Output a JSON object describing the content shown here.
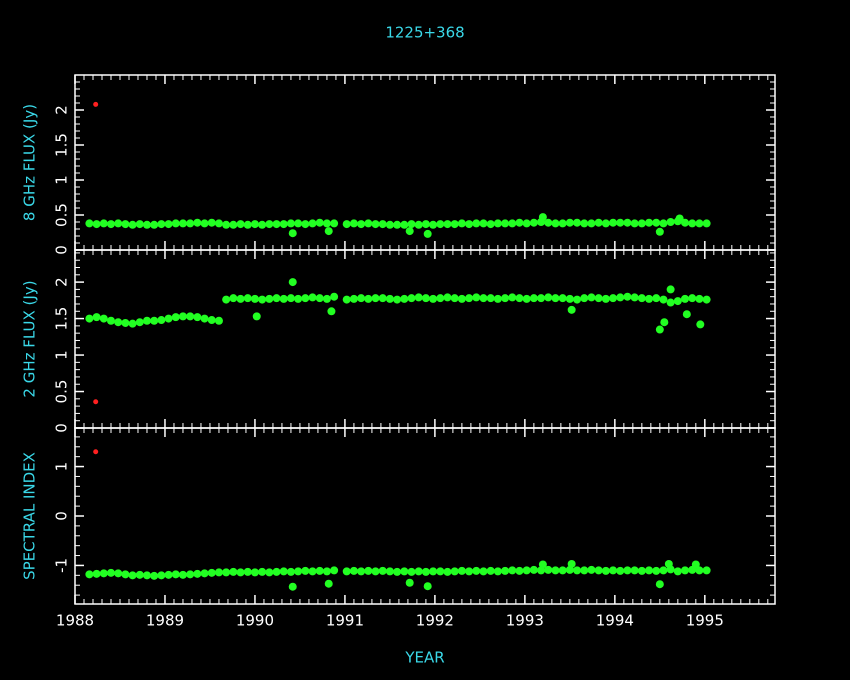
{
  "chart_data": [
    {
      "type": "scatter",
      "title": "1225+368",
      "ylabel": "8 GHz FLUX (Jy)",
      "xlim": [
        1988,
        1995.78
      ],
      "xticks": [
        1988,
        1989,
        1990,
        1991,
        1992,
        1993,
        1994,
        1995
      ],
      "show_xtick_labels": false,
      "x_minor_per_major": 10,
      "ylim": [
        0,
        2.5
      ],
      "yticks": [
        0,
        0.5,
        1,
        1.5,
        2
      ],
      "y_minor_per_major": 5,
      "series": [
        {
          "color": "#22ff22",
          "marker_size": 4,
          "x": [
            1988.16,
            1988.24,
            1988.32,
            1988.4,
            1988.48,
            1988.56,
            1988.64,
            1988.72,
            1988.8,
            1988.88,
            1988.96,
            1989.04,
            1989.12,
            1989.2,
            1989.28,
            1989.36,
            1989.44,
            1989.52,
            1989.6,
            1989.68,
            1989.76,
            1989.84,
            1989.92,
            1990.0,
            1990.08,
            1990.16,
            1990.24,
            1990.32,
            1990.4,
            1990.48,
            1990.56,
            1990.64,
            1990.72,
            1990.8,
            1990.88,
            1991.02,
            1991.1,
            1991.18,
            1991.26,
            1991.34,
            1991.42,
            1991.5,
            1991.58,
            1991.66,
            1991.74,
            1991.82,
            1991.9,
            1991.98,
            1992.06,
            1992.14,
            1992.22,
            1992.3,
            1992.38,
            1992.46,
            1992.54,
            1992.62,
            1992.7,
            1992.78,
            1992.86,
            1992.94,
            1993.02,
            1993.1,
            1993.18,
            1993.26,
            1993.34,
            1993.42,
            1993.5,
            1993.58,
            1993.66,
            1993.74,
            1993.82,
            1993.9,
            1993.98,
            1994.06,
            1994.14,
            1994.22,
            1994.3,
            1994.38,
            1994.46,
            1994.54,
            1994.62,
            1994.7,
            1994.78,
            1994.86,
            1994.94,
            1995.02,
            1990.42,
            1990.82,
            1991.72,
            1991.92,
            1994.5,
            1994.72,
            1993.2
          ],
          "values": [
            0.38,
            0.37,
            0.38,
            0.37,
            0.38,
            0.37,
            0.36,
            0.37,
            0.36,
            0.36,
            0.37,
            0.37,
            0.38,
            0.38,
            0.38,
            0.39,
            0.38,
            0.39,
            0.38,
            0.36,
            0.36,
            0.37,
            0.36,
            0.37,
            0.36,
            0.37,
            0.37,
            0.37,
            0.38,
            0.38,
            0.37,
            0.38,
            0.39,
            0.38,
            0.38,
            0.37,
            0.38,
            0.37,
            0.38,
            0.37,
            0.37,
            0.36,
            0.36,
            0.36,
            0.37,
            0.36,
            0.37,
            0.36,
            0.37,
            0.37,
            0.37,
            0.38,
            0.37,
            0.38,
            0.38,
            0.37,
            0.38,
            0.38,
            0.38,
            0.39,
            0.38,
            0.39,
            0.4,
            0.39,
            0.38,
            0.38,
            0.39,
            0.39,
            0.38,
            0.38,
            0.39,
            0.38,
            0.39,
            0.39,
            0.39,
            0.38,
            0.38,
            0.39,
            0.39,
            0.38,
            0.4,
            0.41,
            0.39,
            0.38,
            0.38,
            0.38,
            0.24,
            0.27,
            0.27,
            0.23,
            0.26,
            0.45,
            0.47
          ]
        },
        {
          "color": "#ff2020",
          "marker_size": 2.5,
          "x": [
            1988.23
          ],
          "values": [
            2.08
          ]
        }
      ]
    },
    {
      "type": "scatter",
      "ylabel": "2 GHz FLUX (Jy)",
      "xlim": [
        1988,
        1995.78
      ],
      "xticks": [
        1988,
        1989,
        1990,
        1991,
        1992,
        1993,
        1994,
        1995
      ],
      "show_xtick_labels": false,
      "x_minor_per_major": 10,
      "ylim": [
        0,
        2.44
      ],
      "yticks": [
        0,
        0.5,
        1,
        1.5,
        2
      ],
      "y_minor_per_major": 5,
      "series": [
        {
          "color": "#22ff22",
          "marker_size": 4,
          "x": [
            1988.16,
            1988.24,
            1988.32,
            1988.4,
            1988.48,
            1988.56,
            1988.64,
            1988.72,
            1988.8,
            1988.88,
            1988.96,
            1989.04,
            1989.12,
            1989.2,
            1989.28,
            1989.36,
            1989.44,
            1989.52,
            1989.6,
            1989.68,
            1989.76,
            1989.84,
            1989.92,
            1990.0,
            1990.08,
            1990.16,
            1990.24,
            1990.32,
            1990.4,
            1990.48,
            1990.56,
            1990.64,
            1990.72,
            1990.8,
            1990.88,
            1991.02,
            1991.1,
            1991.18,
            1991.26,
            1991.34,
            1991.42,
            1991.5,
            1991.58,
            1991.66,
            1991.74,
            1991.82,
            1991.9,
            1991.98,
            1992.06,
            1992.14,
            1992.22,
            1992.3,
            1992.38,
            1992.46,
            1992.54,
            1992.62,
            1992.7,
            1992.78,
            1992.86,
            1992.94,
            1993.02,
            1993.1,
            1993.18,
            1993.26,
            1993.34,
            1993.42,
            1993.5,
            1993.58,
            1993.66,
            1993.74,
            1993.82,
            1993.9,
            1993.98,
            1994.06,
            1994.14,
            1994.22,
            1994.3,
            1994.38,
            1994.46,
            1994.54,
            1994.62,
            1994.7,
            1994.78,
            1994.86,
            1994.94,
            1995.02,
            1990.02,
            1990.42,
            1990.85,
            1993.52,
            1994.5,
            1994.55,
            1994.62,
            1994.8,
            1994.95
          ],
          "values": [
            1.5,
            1.52,
            1.5,
            1.47,
            1.45,
            1.44,
            1.43,
            1.45,
            1.47,
            1.47,
            1.48,
            1.5,
            1.52,
            1.53,
            1.53,
            1.52,
            1.5,
            1.48,
            1.47,
            1.76,
            1.78,
            1.77,
            1.78,
            1.77,
            1.76,
            1.77,
            1.78,
            1.77,
            1.78,
            1.77,
            1.78,
            1.79,
            1.78,
            1.77,
            1.8,
            1.76,
            1.77,
            1.78,
            1.77,
            1.78,
            1.78,
            1.77,
            1.76,
            1.77,
            1.78,
            1.79,
            1.78,
            1.77,
            1.78,
            1.79,
            1.78,
            1.77,
            1.78,
            1.79,
            1.78,
            1.78,
            1.77,
            1.78,
            1.79,
            1.78,
            1.77,
            1.78,
            1.78,
            1.79,
            1.78,
            1.78,
            1.77,
            1.76,
            1.78,
            1.79,
            1.78,
            1.77,
            1.78,
            1.79,
            1.8,
            1.79,
            1.78,
            1.77,
            1.78,
            1.76,
            1.72,
            1.74,
            1.77,
            1.78,
            1.77,
            1.76,
            1.53,
            2.0,
            1.6,
            1.62,
            1.35,
            1.45,
            1.9,
            1.56,
            1.42
          ]
        },
        {
          "color": "#ff2020",
          "marker_size": 2.5,
          "x": [
            1988.23
          ],
          "values": [
            0.36
          ]
        }
      ]
    },
    {
      "type": "scatter",
      "ylabel": "SPECTRAL INDEX",
      "xlabel": "YEAR",
      "xlim": [
        1988,
        1995.78
      ],
      "xticks": [
        1988,
        1989,
        1990,
        1991,
        1992,
        1993,
        1994,
        1995
      ],
      "show_xtick_labels": true,
      "x_minor_per_major": 10,
      "ylim": [
        -1.78,
        1.78
      ],
      "yticks": [
        -1,
        0,
        1
      ],
      "y_minor_per_major": 5,
      "series": [
        {
          "color": "#22ff22",
          "marker_size": 4,
          "x": [
            1988.16,
            1988.24,
            1988.32,
            1988.4,
            1988.48,
            1988.56,
            1988.64,
            1988.72,
            1988.8,
            1988.88,
            1988.96,
            1989.04,
            1989.12,
            1989.2,
            1989.28,
            1989.36,
            1989.44,
            1989.52,
            1989.6,
            1989.68,
            1989.76,
            1989.84,
            1989.92,
            1990.0,
            1990.08,
            1990.16,
            1990.24,
            1990.32,
            1990.4,
            1990.48,
            1990.56,
            1990.64,
            1990.72,
            1990.8,
            1990.88,
            1991.02,
            1991.1,
            1991.18,
            1991.26,
            1991.34,
            1991.42,
            1991.5,
            1991.58,
            1991.66,
            1991.74,
            1991.82,
            1991.9,
            1991.98,
            1992.06,
            1992.14,
            1992.22,
            1992.3,
            1992.38,
            1992.46,
            1992.54,
            1992.62,
            1992.7,
            1992.78,
            1992.86,
            1992.94,
            1993.02,
            1993.1,
            1993.18,
            1993.26,
            1993.34,
            1993.42,
            1993.5,
            1993.58,
            1993.66,
            1993.74,
            1993.82,
            1993.9,
            1993.98,
            1994.06,
            1994.14,
            1994.22,
            1994.3,
            1994.38,
            1994.46,
            1994.54,
            1994.62,
            1994.7,
            1994.78,
            1994.86,
            1994.94,
            1995.02,
            1990.42,
            1990.82,
            1991.72,
            1991.92,
            1993.2,
            1993.52,
            1994.5,
            1994.6,
            1994.9
          ],
          "values": [
            -1.18,
            -1.17,
            -1.16,
            -1.15,
            -1.16,
            -1.18,
            -1.2,
            -1.19,
            -1.2,
            -1.21,
            -1.2,
            -1.19,
            -1.18,
            -1.19,
            -1.18,
            -1.17,
            -1.16,
            -1.15,
            -1.14,
            -1.14,
            -1.13,
            -1.14,
            -1.13,
            -1.14,
            -1.13,
            -1.14,
            -1.13,
            -1.12,
            -1.13,
            -1.12,
            -1.11,
            -1.12,
            -1.11,
            -1.12,
            -1.1,
            -1.12,
            -1.11,
            -1.12,
            -1.11,
            -1.12,
            -1.11,
            -1.12,
            -1.13,
            -1.12,
            -1.13,
            -1.12,
            -1.13,
            -1.12,
            -1.12,
            -1.13,
            -1.12,
            -1.11,
            -1.12,
            -1.11,
            -1.12,
            -1.11,
            -1.12,
            -1.11,
            -1.1,
            -1.11,
            -1.1,
            -1.09,
            -1.1,
            -1.09,
            -1.1,
            -1.1,
            -1.09,
            -1.1,
            -1.1,
            -1.09,
            -1.1,
            -1.11,
            -1.1,
            -1.11,
            -1.1,
            -1.1,
            -1.11,
            -1.1,
            -1.11,
            -1.1,
            -1.08,
            -1.12,
            -1.1,
            -1.09,
            -1.1,
            -1.1,
            -1.43,
            -1.37,
            -1.35,
            -1.42,
            -0.98,
            -0.97,
            -1.38,
            -0.97,
            -0.98
          ]
        },
        {
          "color": "#ff2020",
          "marker_size": 2.5,
          "x": [
            1988.23
          ],
          "values": [
            1.3
          ]
        }
      ]
    }
  ]
}
